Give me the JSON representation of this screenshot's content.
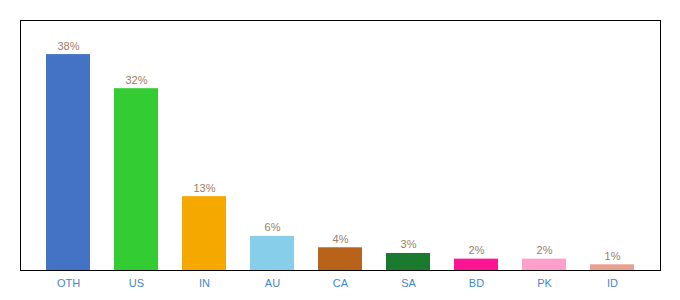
{
  "chart_data": {
    "type": "bar",
    "categories": [
      "OTH",
      "US",
      "IN",
      "AU",
      "CA",
      "SA",
      "BD",
      "PK",
      "ID"
    ],
    "values": [
      38,
      32,
      13,
      6,
      4,
      3,
      2,
      2,
      1
    ],
    "value_labels": [
      "38%",
      "32%",
      "13%",
      "6%",
      "4%",
      "3%",
      "2%",
      "2%",
      "1%"
    ],
    "colors": [
      "#4472c4",
      "#33cc33",
      "#f5a800",
      "#87ceeb",
      "#b8621a",
      "#1a7a2e",
      "#ff1493",
      "#ff9ec8",
      "#e8a090"
    ],
    "ylim": [
      0,
      44
    ],
    "data_labels": true,
    "tick_labels": "x",
    "grid": false
  }
}
